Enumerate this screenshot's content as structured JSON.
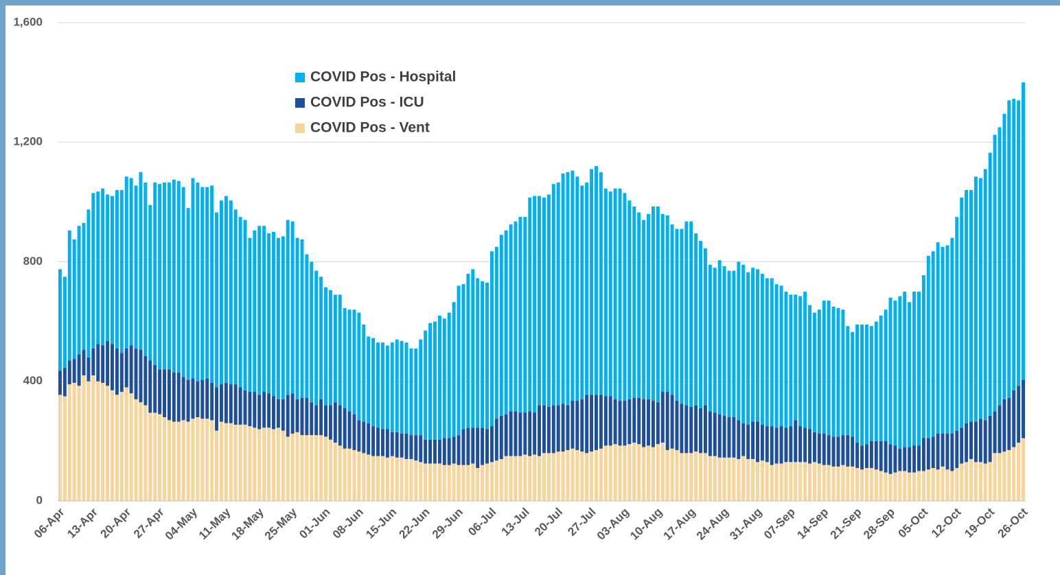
{
  "chart_data": {
    "type": "stacked_bar",
    "categories": [
      "06-Apr",
      null,
      null,
      null,
      null,
      null,
      null,
      "13-Apr",
      null,
      null,
      null,
      null,
      null,
      null,
      "20-Apr",
      null,
      null,
      null,
      null,
      null,
      null,
      "27-Apr",
      null,
      null,
      null,
      null,
      null,
      null,
      "04-May",
      null,
      null,
      null,
      null,
      null,
      null,
      "11-May",
      null,
      null,
      null,
      null,
      null,
      null,
      "18-May",
      null,
      null,
      null,
      null,
      null,
      null,
      "25-May",
      null,
      null,
      null,
      null,
      null,
      null,
      "01-Jun",
      null,
      null,
      null,
      null,
      null,
      null,
      "08-Jun",
      null,
      null,
      null,
      null,
      null,
      null,
      "15-Jun",
      null,
      null,
      null,
      null,
      null,
      null,
      "22-Jun",
      null,
      null,
      null,
      null,
      null,
      null,
      "29-Jun",
      null,
      null,
      null,
      null,
      null,
      null,
      "06-Jul",
      null,
      null,
      null,
      null,
      null,
      null,
      "13-Jul",
      null,
      null,
      null,
      null,
      null,
      null,
      "20-Jul",
      null,
      null,
      null,
      null,
      null,
      null,
      "27-Jul",
      null,
      null,
      null,
      null,
      null,
      null,
      "03-Aug",
      null,
      null,
      null,
      null,
      null,
      null,
      "10-Aug",
      null,
      null,
      null,
      null,
      null,
      null,
      "17-Aug",
      null,
      null,
      null,
      null,
      null,
      null,
      "24-Aug",
      null,
      null,
      null,
      null,
      null,
      null,
      "31-Aug",
      null,
      null,
      null,
      null,
      null,
      null,
      "07-Sep",
      null,
      null,
      null,
      null,
      null,
      null,
      "14-Sep",
      null,
      null,
      null,
      null,
      null,
      null,
      "21-Sep",
      null,
      null,
      null,
      null,
      null,
      null,
      "28-Sep",
      null,
      null,
      null,
      null,
      null,
      null,
      "05-Oct",
      null,
      null,
      null,
      null,
      null,
      null,
      "12-Oct",
      null,
      null,
      null,
      null,
      null,
      null,
      "19-Oct",
      null,
      null,
      null,
      null,
      null,
      null,
      "26-Oct"
    ],
    "series": [
      {
        "name": "COVID Pos - Hospital",
        "color": "#00b0f0",
        "values": [
          340,
          305,
          435,
          400,
          430,
          425,
          495,
          520,
          510,
          525,
          490,
          495,
          530,
          545,
          575,
          560,
          545,
          595,
          580,
          520,
          610,
          620,
          625,
          625,
          645,
          640,
          635,
          575,
          670,
          665,
          645,
          640,
          660,
          585,
          615,
          625,
          615,
          585,
          570,
          570,
          515,
          540,
          565,
          555,
          535,
          550,
          540,
          545,
          585,
          575,
          540,
          530,
          480,
          470,
          450,
          410,
          395,
          385,
          360,
          370,
          335,
          340,
          350,
          360,
          325,
          290,
          295,
          285,
          290,
          280,
          300,
          310,
          310,
          305,
          290,
          290,
          320,
          365,
          390,
          395,
          415,
          400,
          420,
          450,
          500,
          485,
          515,
          530,
          500,
          490,
          490,
          585,
          575,
          605,
          615,
          625,
          635,
          655,
          655,
          715,
          725,
          700,
          695,
          710,
          740,
          745,
          770,
          780,
          770,
          750,
          715,
          710,
          755,
          765,
          745,
          695,
          685,
          705,
          710,
          695,
          665,
          640,
          620,
          600,
          620,
          650,
          655,
          595,
          590,
          570,
          575,
          585,
          615,
          620,
          575,
          560,
          525,
          490,
          485,
          515,
          500,
          490,
          490,
          530,
          530,
          510,
          515,
          510,
          505,
          495,
          495,
          480,
          470,
          455,
          440,
          420,
          435,
          455,
          415,
          400,
          415,
          445,
          450,
          435,
          430,
          420,
          365,
          350,
          395,
          405,
          400,
          385,
          400,
          420,
          440,
          490,
          485,
          510,
          520,
          485,
          515,
          515,
          545,
          610,
          620,
          640,
          625,
          630,
          655,
          715,
          770,
          780,
          775,
          820,
          805,
          840,
          880,
          925,
          930,
          955,
          995,
          975,
          955,
          995
        ]
      },
      {
        "name": "COVID Pos - ICU",
        "color": "#1d4f9c",
        "values": [
          80,
          95,
          80,
          80,
          105,
          85,
          80,
          90,
          125,
          125,
          150,
          155,
          155,
          130,
          130,
          160,
          170,
          175,
          165,
          175,
          160,
          150,
          160,
          170,
          165,
          165,
          145,
          140,
          135,
          120,
          130,
          135,
          125,
          145,
          125,
          135,
          130,
          135,
          125,
          115,
          115,
          120,
          115,
          120,
          115,
          110,
          95,
          105,
          140,
          135,
          110,
          125,
          125,
          110,
          100,
          120,
          105,
          115,
          135,
          135,
          135,
          125,
          120,
          105,
          105,
          105,
          100,
          95,
          90,
          95,
          80,
          85,
          80,
          85,
          80,
          85,
          90,
          80,
          80,
          80,
          80,
          90,
          90,
          90,
          100,
          120,
          125,
          120,
          135,
          125,
          115,
          120,
          140,
          145,
          140,
          150,
          150,
          145,
          140,
          150,
          140,
          170,
          160,
          155,
          160,
          155,
          160,
          150,
          160,
          165,
          175,
          195,
          190,
          185,
          180,
          165,
          165,
          150,
          150,
          150,
          150,
          150,
          155,
          160,
          155,
          155,
          140,
          170,
          195,
          180,
          165,
          165,
          160,
          155,
          155,
          150,
          160,
          150,
          145,
          145,
          140,
          135,
          135,
          130,
          110,
          115,
          125,
          135,
          120,
          120,
          130,
          120,
          125,
          115,
          120,
          140,
          120,
          115,
          115,
          100,
          100,
          105,
          100,
          100,
          100,
          100,
          105,
          100,
          85,
          80,
          80,
          90,
          95,
          100,
          105,
          100,
          90,
          75,
          80,
          85,
          90,
          85,
          110,
          105,
          105,
          120,
          110,
          120,
          125,
          125,
          120,
          130,
          125,
          135,
          145,
          145,
          155,
          140,
          160,
          175,
          175,
          190,
          190,
          195
        ]
      },
      {
        "name": "COVID Pos - Vent",
        "color": "#f8d49a",
        "values": [
          355,
          350,
          390,
          395,
          385,
          420,
          400,
          420,
          400,
          395,
          385,
          370,
          355,
          365,
          380,
          360,
          340,
          330,
          320,
          295,
          295,
          290,
          280,
          270,
          265,
          265,
          270,
          265,
          275,
          280,
          275,
          275,
          270,
          235,
          265,
          260,
          260,
          255,
          255,
          255,
          250,
          245,
          240,
          245,
          245,
          240,
          245,
          235,
          215,
          225,
          230,
          220,
          220,
          220,
          220,
          220,
          215,
          205,
          195,
          185,
          175,
          175,
          170,
          165,
          160,
          155,
          150,
          150,
          150,
          145,
          150,
          145,
          145,
          140,
          140,
          135,
          130,
          125,
          125,
          125,
          125,
          120,
          120,
          125,
          120,
          120,
          120,
          125,
          110,
          120,
          125,
          130,
          135,
          140,
          150,
          150,
          150,
          150,
          155,
          150,
          155,
          150,
          160,
          160,
          160,
          165,
          165,
          170,
          175,
          170,
          165,
          160,
          165,
          170,
          175,
          185,
          185,
          190,
          185,
          185,
          190,
          195,
          190,
          180,
          185,
          180,
          190,
          195,
          170,
          175,
          170,
          160,
          160,
          160,
          165,
          160,
          160,
          150,
          150,
          145,
          145,
          145,
          145,
          140,
          150,
          140,
          140,
          130,
          135,
          130,
          120,
          125,
          125,
          130,
          130,
          130,
          130,
          130,
          125,
          130,
          125,
          120,
          120,
          115,
          115,
          120,
          115,
          115,
          110,
          105,
          110,
          110,
          105,
          100,
          95,
          90,
          95,
          100,
          100,
          95,
          95,
          100,
          100,
          105,
          110,
          105,
          115,
          105,
          100,
          110,
          125,
          130,
          140,
          130,
          130,
          125,
          130,
          160,
          160,
          165,
          170,
          180,
          195,
          210
        ]
      }
    ],
    "ylim": [
      0,
      1600
    ],
    "yticks": [
      0,
      400,
      800,
      {
        "value": 1200,
        "label": "1,200"
      },
      {
        "value": 1600,
        "label": "1,600"
      }
    ],
    "grid": true
  }
}
